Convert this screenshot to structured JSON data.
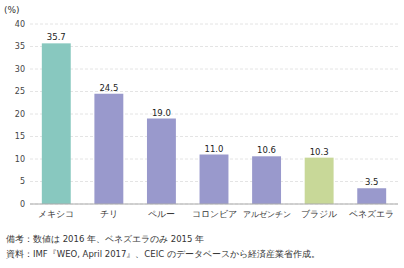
{
  "chart_data": {
    "type": "bar",
    "y_label": "(%)",
    "categories": [
      "メキシコ",
      "チリ",
      "ペルー",
      "コロンビア",
      "アルゼンチン",
      "ブラジル",
      "ベネズエラ"
    ],
    "values": [
      35.7,
      24.5,
      19.0,
      11.0,
      10.6,
      10.3,
      3.5
    ],
    "value_labels": [
      "35.7",
      "24.5",
      "19.0",
      "11.0",
      "10.6",
      "10.3",
      "3.5"
    ],
    "colors": [
      "#88c8bf",
      "#9999cc",
      "#9999cc",
      "#9999cc",
      "#9999cc",
      "#c8d898",
      "#9999cc"
    ],
    "ylim": [
      0,
      40
    ],
    "yticks": [
      0,
      5,
      10,
      15,
      20,
      25,
      30,
      35,
      40
    ],
    "grid": true,
    "data_labels": true,
    "notes": [
      "備考：数値は 2016 年、ベネズエラのみ 2015 年",
      "資料：IMF『WEO, April 2017』、CEIC のデータベースから経済産業省作成。"
    ]
  }
}
